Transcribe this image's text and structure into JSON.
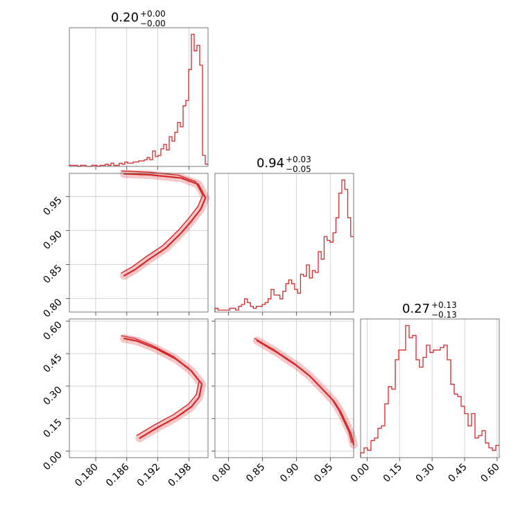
{
  "chart_data": {
    "type": "corner",
    "color": "#d62728",
    "grid": true,
    "parameters": [
      {
        "id": "p0",
        "range": [
          0.1749,
          0.2017
        ],
        "ticks": [
          0.18,
          0.186,
          0.192,
          0.198
        ],
        "tick_labels": [
          "0.180",
          "0.186",
          "0.192",
          "0.198"
        ]
      },
      {
        "id": "p1",
        "range": [
          0.78,
          0.984
        ],
        "ticks": [
          0.8,
          0.85,
          0.9,
          0.95
        ],
        "tick_labels": [
          "0.80",
          "0.85",
          "0.90",
          "0.95"
        ]
      },
      {
        "id": "p2",
        "range": [
          -0.03,
          0.61
        ],
        "ticks": [
          0.0,
          0.15,
          0.3,
          0.45,
          0.6
        ],
        "tick_labels": [
          "0.00",
          "0.15",
          "0.30",
          "0.45",
          "0.60"
        ]
      }
    ],
    "titles": [
      {
        "median": "0.20",
        "plus": "+0.00",
        "minus": "−0.00"
      },
      {
        "median": "0.94",
        "plus": "+0.03",
        "minus": "−0.05"
      },
      {
        "median": "0.27",
        "plus": "+0.13",
        "minus": "−0.13"
      }
    ],
    "histograms": [
      {
        "param": 0,
        "bins": [
          0.1749,
          0.2017
        ],
        "counts": [
          1,
          1,
          1,
          0,
          1,
          1,
          0,
          0,
          1,
          1,
          0,
          1,
          1,
          2,
          1,
          3,
          1,
          1,
          3,
          2,
          4,
          3,
          3,
          4,
          4,
          5,
          5,
          6,
          8,
          6,
          14,
          9,
          10,
          16,
          20,
          15,
          27,
          23,
          31,
          40,
          36,
          55,
          60,
          88,
          120,
          105,
          110,
          92,
          10,
          2
        ]
      },
      {
        "param": 1,
        "bins": [
          0.78,
          0.984
        ],
        "counts": [
          2,
          1,
          1,
          1,
          1,
          2,
          2,
          1,
          3,
          4,
          7,
          5,
          3,
          2,
          3,
          3,
          4,
          5,
          7,
          12,
          9,
          9,
          7,
          11,
          15,
          17,
          15,
          12,
          10,
          20,
          19,
          25,
          18,
          22,
          21,
          32,
          28,
          40,
          38,
          37,
          42,
          50,
          63,
          70,
          65,
          50,
          40
        ]
      },
      {
        "param": 2,
        "bins": [
          -0.03,
          0.61
        ],
        "counts": [
          2,
          4,
          3,
          7,
          8,
          12,
          13,
          22,
          29,
          28,
          40,
          44,
          44,
          54,
          49,
          50,
          40,
          37,
          41,
          46,
          43,
          44,
          44,
          45,
          46,
          40,
          30,
          26,
          25,
          21,
          18,
          13,
          18,
          8,
          9,
          11,
          6,
          4,
          3,
          5
        ]
      }
    ],
    "contour_pairs": [
      {
        "x_param": 0,
        "y_param": 1,
        "curve": "p1 = 2.1 - (p0 - 0.2015)^2 * 9500 ...",
        "samples": [
          [
            0.1855,
            0.8335
          ],
          [
            0.1876,
            0.8425
          ],
          [
            0.1902,
            0.857
          ],
          [
            0.1935,
            0.8738
          ],
          [
            0.1965,
            0.8962
          ],
          [
            0.1985,
            0.9138
          ],
          [
            0.2003,
            0.9315
          ],
          [
            0.2012,
            0.948
          ],
          [
            0.1998,
            0.968
          ],
          [
            0.1965,
            0.9772
          ],
          [
            0.1905,
            0.9818
          ],
          [
            0.1855,
            0.9833
          ]
        ]
      },
      {
        "x_param": 0,
        "y_param": 2,
        "samples": [
          [
            0.1855,
            0.52
          ],
          [
            0.188,
            0.508
          ],
          [
            0.1915,
            0.475
          ],
          [
            0.1955,
            0.425
          ],
          [
            0.1985,
            0.37
          ],
          [
            0.2005,
            0.31
          ],
          [
            0.2,
            0.25
          ],
          [
            0.1985,
            0.205
          ],
          [
            0.1955,
            0.155
          ],
          [
            0.192,
            0.11
          ],
          [
            0.1885,
            0.06
          ]
        ]
      },
      {
        "x_param": 1,
        "y_param": 2,
        "samples": [
          [
            0.842,
            0.51
          ],
          [
            0.87,
            0.458
          ],
          [
            0.9,
            0.395
          ],
          [
            0.92,
            0.345
          ],
          [
            0.94,
            0.28
          ],
          [
            0.955,
            0.23
          ],
          [
            0.965,
            0.18
          ],
          [
            0.974,
            0.12
          ],
          [
            0.98,
            0.08
          ],
          [
            0.984,
            0.03
          ]
        ]
      }
    ]
  }
}
